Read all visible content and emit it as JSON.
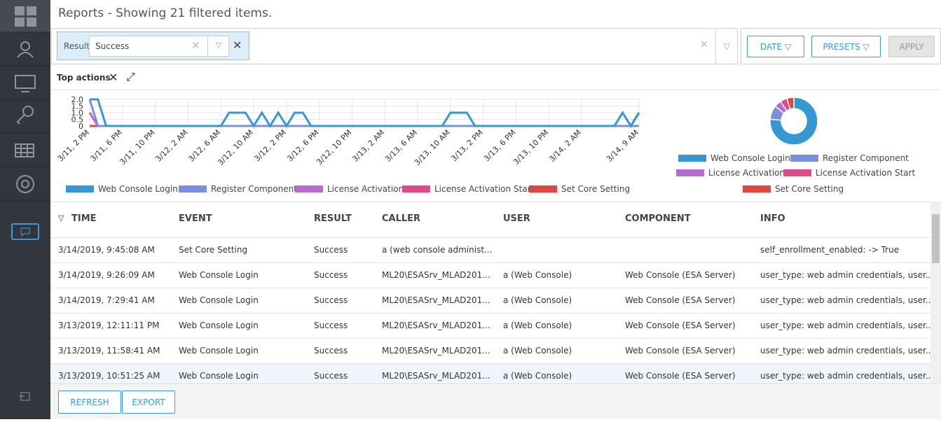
{
  "header": {
    "title": "Reports - Showing 21 filtered items."
  },
  "filter": {
    "label": "Result",
    "value": "Success"
  },
  "buttons": {
    "date": "DATE",
    "presets": "PRESETS",
    "apply": "APPLY"
  },
  "widget": {
    "title": "Top actions"
  },
  "chart_data": [
    {
      "type": "line",
      "grid": true,
      "categories": [
        "3/11, 2 PM",
        null,
        null,
        null,
        "3/11, 6 PM",
        null,
        null,
        null,
        "3/11, 10 PM",
        null,
        null,
        null,
        "3/12, 2 AM",
        null,
        null,
        null,
        "3/12, 6 AM",
        null,
        null,
        null,
        "3/12, 10 AM",
        null,
        null,
        null,
        "3/12, 2 PM",
        null,
        null,
        null,
        "3/12, 6 PM",
        null,
        null,
        null,
        "3/12, 10 PM",
        null,
        null,
        null,
        "3/13, 2 AM",
        null,
        null,
        null,
        "3/13, 6 AM",
        null,
        null,
        null,
        "3/13, 10 AM",
        null,
        null,
        null,
        "3/13, 2 PM",
        null,
        null,
        null,
        "3/13, 6 PM",
        null,
        null,
        null,
        "3/13, 10 PM",
        null,
        null,
        null,
        "3/14, 2 AM",
        null,
        null,
        null,
        null,
        null,
        null,
        "3/14, 9 AM"
      ],
      "ylim": [
        0,
        2
      ],
      "yticks": [
        0,
        0.5,
        {
          "value": 1,
          "label": "1.0"
        },
        1.5,
        {
          "value": 2,
          "label": "2.0"
        }
      ],
      "series": [
        {
          "name": "Web Console Login",
          "color": "#3399d4",
          "values": [
            2,
            2,
            0,
            0,
            0,
            0,
            0,
            0,
            0,
            0,
            0,
            0,
            0,
            0,
            0,
            0,
            0,
            1,
            1,
            1,
            0,
            1,
            0,
            1,
            0,
            1,
            1,
            0,
            0,
            0,
            0,
            0,
            0,
            0,
            0,
            0,
            0,
            0,
            0,
            0,
            0,
            0,
            0,
            0,
            1,
            1,
            1,
            0,
            0,
            0,
            0,
            0,
            0,
            0,
            0,
            0,
            0,
            0,
            0,
            0,
            0,
            0,
            0,
            0,
            0,
            1,
            0,
            1
          ]
        },
        {
          "name": "Register Component",
          "color": "#7b8fe0",
          "values": [
            2,
            0,
            0,
            0,
            0,
            0,
            0,
            0,
            0,
            0,
            0,
            0,
            0,
            0,
            0,
            0,
            0,
            0,
            0,
            0,
            0,
            0,
            0,
            0,
            0,
            0,
            0,
            0,
            0,
            0,
            0,
            0,
            0,
            0,
            0,
            0,
            0,
            0,
            0,
            0,
            0,
            0,
            0,
            0,
            0,
            0,
            0,
            0,
            0,
            0,
            0,
            0,
            0,
            0,
            0,
            0,
            0,
            0,
            0,
            0,
            0,
            0,
            0,
            0,
            0,
            0,
            0,
            0
          ]
        },
        {
          "name": "License Activation",
          "color": "#b66ccf",
          "values": [
            1,
            0,
            0,
            0,
            0,
            0,
            0,
            0,
            0,
            0,
            0,
            0,
            0,
            0,
            0,
            0,
            0,
            0,
            0,
            0,
            0,
            0,
            0,
            0,
            0,
            0,
            0,
            0,
            0,
            0,
            0,
            0,
            0,
            0,
            0,
            0,
            0,
            0,
            0,
            0,
            0,
            0,
            0,
            0,
            0,
            0,
            0,
            0,
            0,
            0,
            0,
            0,
            0,
            0,
            0,
            0,
            0,
            0,
            0,
            0,
            0,
            0,
            0,
            0,
            0,
            0,
            0,
            0
          ]
        },
        {
          "name": "License Activation Start",
          "color": "#e0498a",
          "values": [
            1,
            0,
            0,
            0,
            0,
            0,
            0,
            0,
            0,
            0,
            0,
            0,
            0,
            0,
            0,
            0,
            0,
            0,
            0,
            0,
            0,
            0,
            0,
            0,
            0,
            0,
            0,
            0,
            0,
            0,
            0,
            0,
            0,
            0,
            0,
            0,
            0,
            0,
            0,
            0,
            0,
            0,
            0,
            0,
            0,
            0,
            0,
            0,
            0,
            0,
            0,
            0,
            0,
            0,
            0,
            0,
            0,
            0,
            0,
            0,
            0,
            0,
            0,
            0,
            0,
            0,
            0,
            0
          ]
        },
        {
          "name": "Set Core Setting",
          "color": "#e0463e",
          "values": [
            0,
            0,
            0,
            0,
            0,
            0,
            0,
            0,
            0,
            0,
            0,
            0,
            0,
            0,
            0,
            0,
            0,
            0,
            0,
            0,
            0,
            0,
            0,
            0,
            0,
            0,
            0,
            0,
            0,
            0,
            0,
            0,
            0,
            0,
            0,
            0,
            0,
            0,
            0,
            0,
            0,
            0,
            0,
            0,
            0,
            0,
            0,
            0,
            0,
            0,
            0,
            0,
            0,
            0,
            0,
            0,
            0,
            0,
            0,
            0,
            0,
            0,
            0,
            0,
            0,
            0,
            0,
            1
          ]
        }
      ]
    },
    {
      "type": "pie",
      "donut": true,
      "categories": [
        "Web Console Login",
        "Register Component",
        "License Activation",
        "License Activation Start",
        "Set Core Setting"
      ],
      "values": [
        16,
        2,
        1,
        1,
        1
      ],
      "colors": [
        "#3399d4",
        "#7b8fe0",
        "#b66ccf",
        "#e0498a",
        "#e0463e"
      ]
    }
  ],
  "table": {
    "columns": [
      "TIME",
      "EVENT",
      "RESULT",
      "CALLER",
      "USER",
      "COMPONENT",
      "INFO"
    ],
    "rows": [
      [
        "3/14/2019, 9:45:08 AM",
        "Set Core Setting",
        "Success",
        "a (web console administ...",
        "",
        "",
        "self_enrollment_enabled: -> True"
      ],
      [
        "3/14/2019, 9:26:09 AM",
        "Web Console Login",
        "Success",
        "ML20\\ESASrv_MLAD201...",
        "a (Web Console)",
        "Web Console (ESA Server)",
        "user_type: web admin credentials, user..."
      ],
      [
        "3/14/2019, 7:29:41 AM",
        "Web Console Login",
        "Success",
        "ML20\\ESASrv_MLAD201...",
        "a (Web Console)",
        "Web Console (ESA Server)",
        "user_type: web admin credentials, user..."
      ],
      [
        "3/13/2019, 12:11:11 PM",
        "Web Console Login",
        "Success",
        "ML20\\ESASrv_MLAD201...",
        "a (Web Console)",
        "Web Console (ESA Server)",
        "user_type: web admin credentials, user..."
      ],
      [
        "3/13/2019, 11:58:41 AM",
        "Web Console Login",
        "Success",
        "ML20\\ESASrv_MLAD201...",
        "a (Web Console)",
        "Web Console (ESA Server)",
        "user_type: web admin credentials, user..."
      ],
      [
        "3/13/2019, 10:51:25 AM",
        "Web Console Login",
        "Success",
        "ML20\\ESASrv_MLAD201...",
        "a (Web Console)",
        "Web Console (ESA Server)",
        "user_type: web admin credentials, user..."
      ]
    ]
  },
  "footer_buttons": {
    "refresh": "REFRESH",
    "export": "EXPORT"
  }
}
